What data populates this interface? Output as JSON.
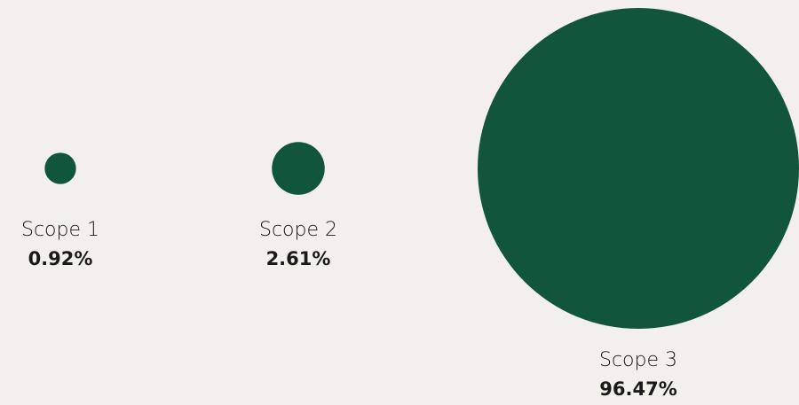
{
  "chart_data": {
    "type": "bubble",
    "categories": [
      "Scope 1",
      "Scope 2",
      "Scope 3"
    ],
    "values": [
      0.92,
      2.61,
      96.47
    ],
    "value_labels": [
      "0.92%",
      "2.61%",
      "96.47%"
    ],
    "color": "#11563a"
  }
}
